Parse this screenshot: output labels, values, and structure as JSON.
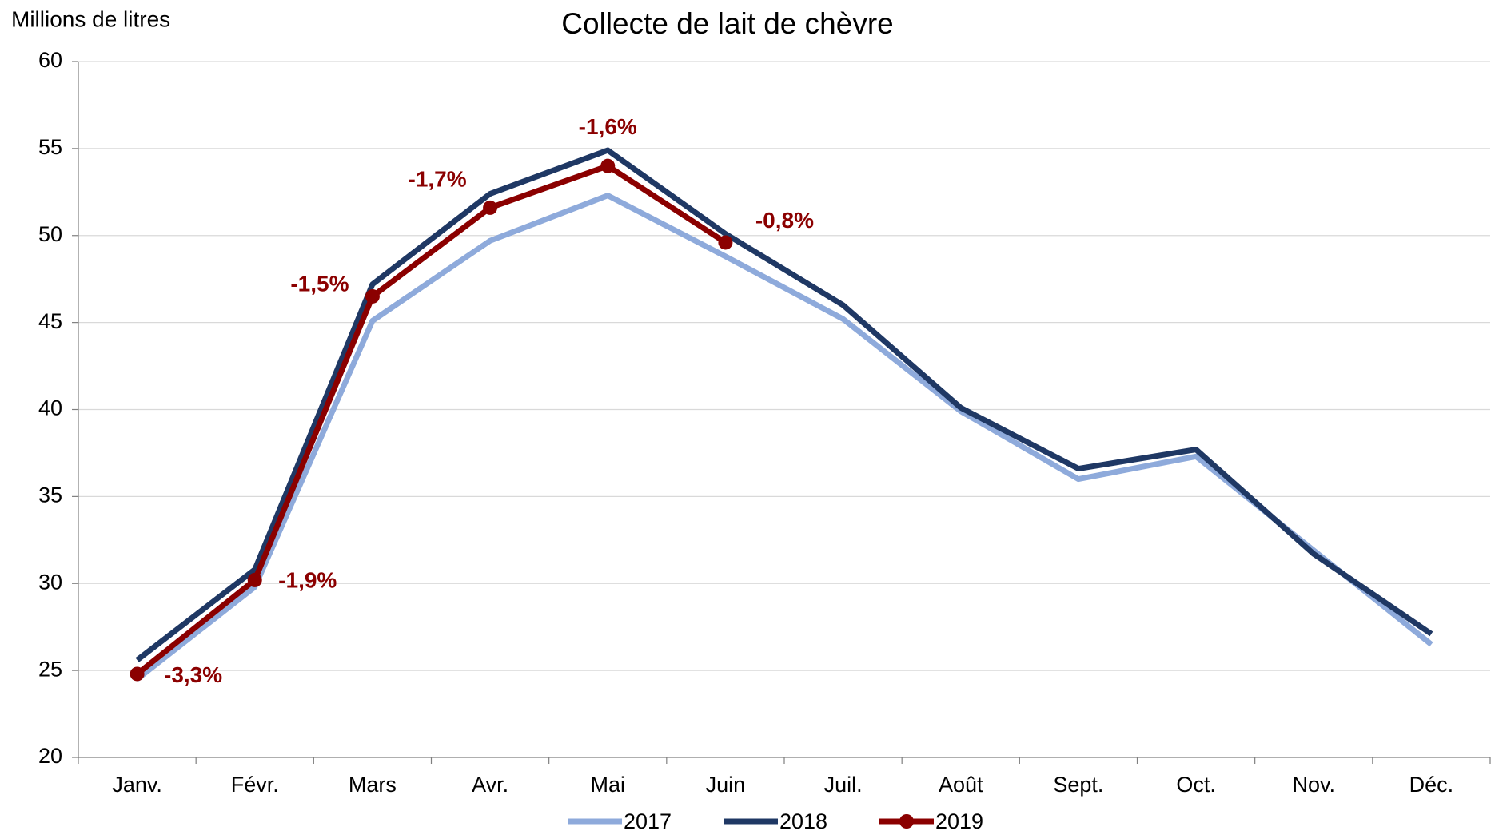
{
  "chart_data": {
    "type": "line",
    "title": "Collecte de lait de chèvre",
    "y_label": "Millions de litres",
    "categories": [
      "Janv.",
      "Févr.",
      "Mars",
      "Avr.",
      "Mai",
      "Juin",
      "Juil.",
      "Août",
      "Sept.",
      "Oct.",
      "Nov.",
      "Déc."
    ],
    "series": [
      {
        "name": "2017",
        "color": "#8eaadb",
        "values": [
          24.5,
          29.8,
          45.1,
          49.7,
          52.3,
          48.8,
          45.2,
          39.9,
          36.0,
          37.3,
          31.9,
          26.5
        ]
      },
      {
        "name": "2018",
        "color": "#1f3864",
        "values": [
          25.6,
          30.8,
          47.2,
          52.4,
          54.9,
          50.1,
          46.0,
          40.1,
          36.6,
          37.7,
          31.7,
          27.1
        ]
      },
      {
        "name": "2019",
        "color": "#8b0000",
        "values": [
          24.8,
          30.2,
          46.5,
          51.6,
          54.0,
          49.6,
          null,
          null,
          null,
          null,
          null,
          null
        ],
        "markers": true,
        "annotations": [
          "-3,3%",
          "-1,9%",
          "-1,5%",
          "-1,7%",
          "-1,6%",
          "-0,8%"
        ]
      }
    ],
    "ylim": [
      20,
      60
    ],
    "yticks": [
      20,
      25,
      30,
      35,
      40,
      45,
      50,
      55,
      60
    ],
    "grid": true,
    "legend": "bottom"
  }
}
